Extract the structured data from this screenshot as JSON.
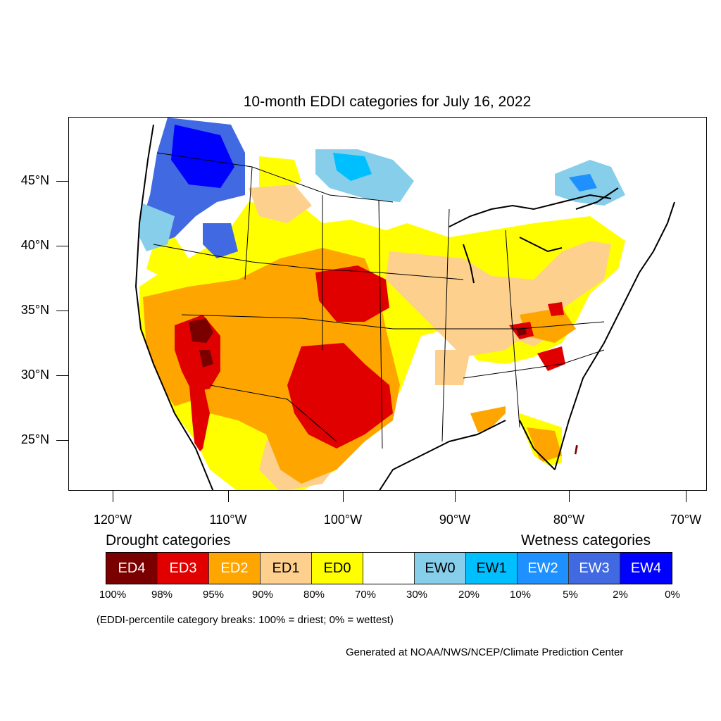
{
  "title": "10-month EDDI categories for July 16, 2022",
  "map": {
    "y_axis": [
      "45°N",
      "40°N",
      "35°N",
      "30°N",
      "25°N"
    ],
    "x_axis": [
      "120°W",
      "110°W",
      "100°W",
      "90°W",
      "80°W",
      "70°W"
    ]
  },
  "legend": {
    "drought_heading": "Drought categories",
    "wetness_heading": "Wetness categories",
    "categories": [
      {
        "label": "ED4",
        "color": "#7a0000",
        "text_color": "#ffffff"
      },
      {
        "label": "ED3",
        "color": "#e00000",
        "text_color": "#ffffff"
      },
      {
        "label": "ED2",
        "color": "#ffa500",
        "text_color": "#ffffff"
      },
      {
        "label": "ED1",
        "color": "#fdd08d",
        "text_color": "#000000"
      },
      {
        "label": "ED0",
        "color": "#ffff00",
        "text_color": "#000000"
      },
      {
        "label": "",
        "color": "#ffffff",
        "text_color": "#000000"
      },
      {
        "label": "EW0",
        "color": "#87ceeb",
        "text_color": "#000000"
      },
      {
        "label": "EW1",
        "color": "#00bfff",
        "text_color": "#000000"
      },
      {
        "label": "EW2",
        "color": "#1e90ff",
        "text_color": "#ffffff"
      },
      {
        "label": "EW3",
        "color": "#4169e1",
        "text_color": "#ffffff"
      },
      {
        "label": "EW4",
        "color": "#0000ff",
        "text_color": "#ffffff"
      }
    ],
    "percentiles": [
      "100%",
      "98%",
      "95%",
      "90%",
      "80%",
      "70%",
      "30%",
      "20%",
      "10%",
      "5%",
      "2%",
      "0%"
    ],
    "note": "(EDDI-percentile category breaks: 100% = driest; 0% = wettest)"
  },
  "credit": "Generated at NOAA/NWS/NCEP/Climate Prediction Center"
}
